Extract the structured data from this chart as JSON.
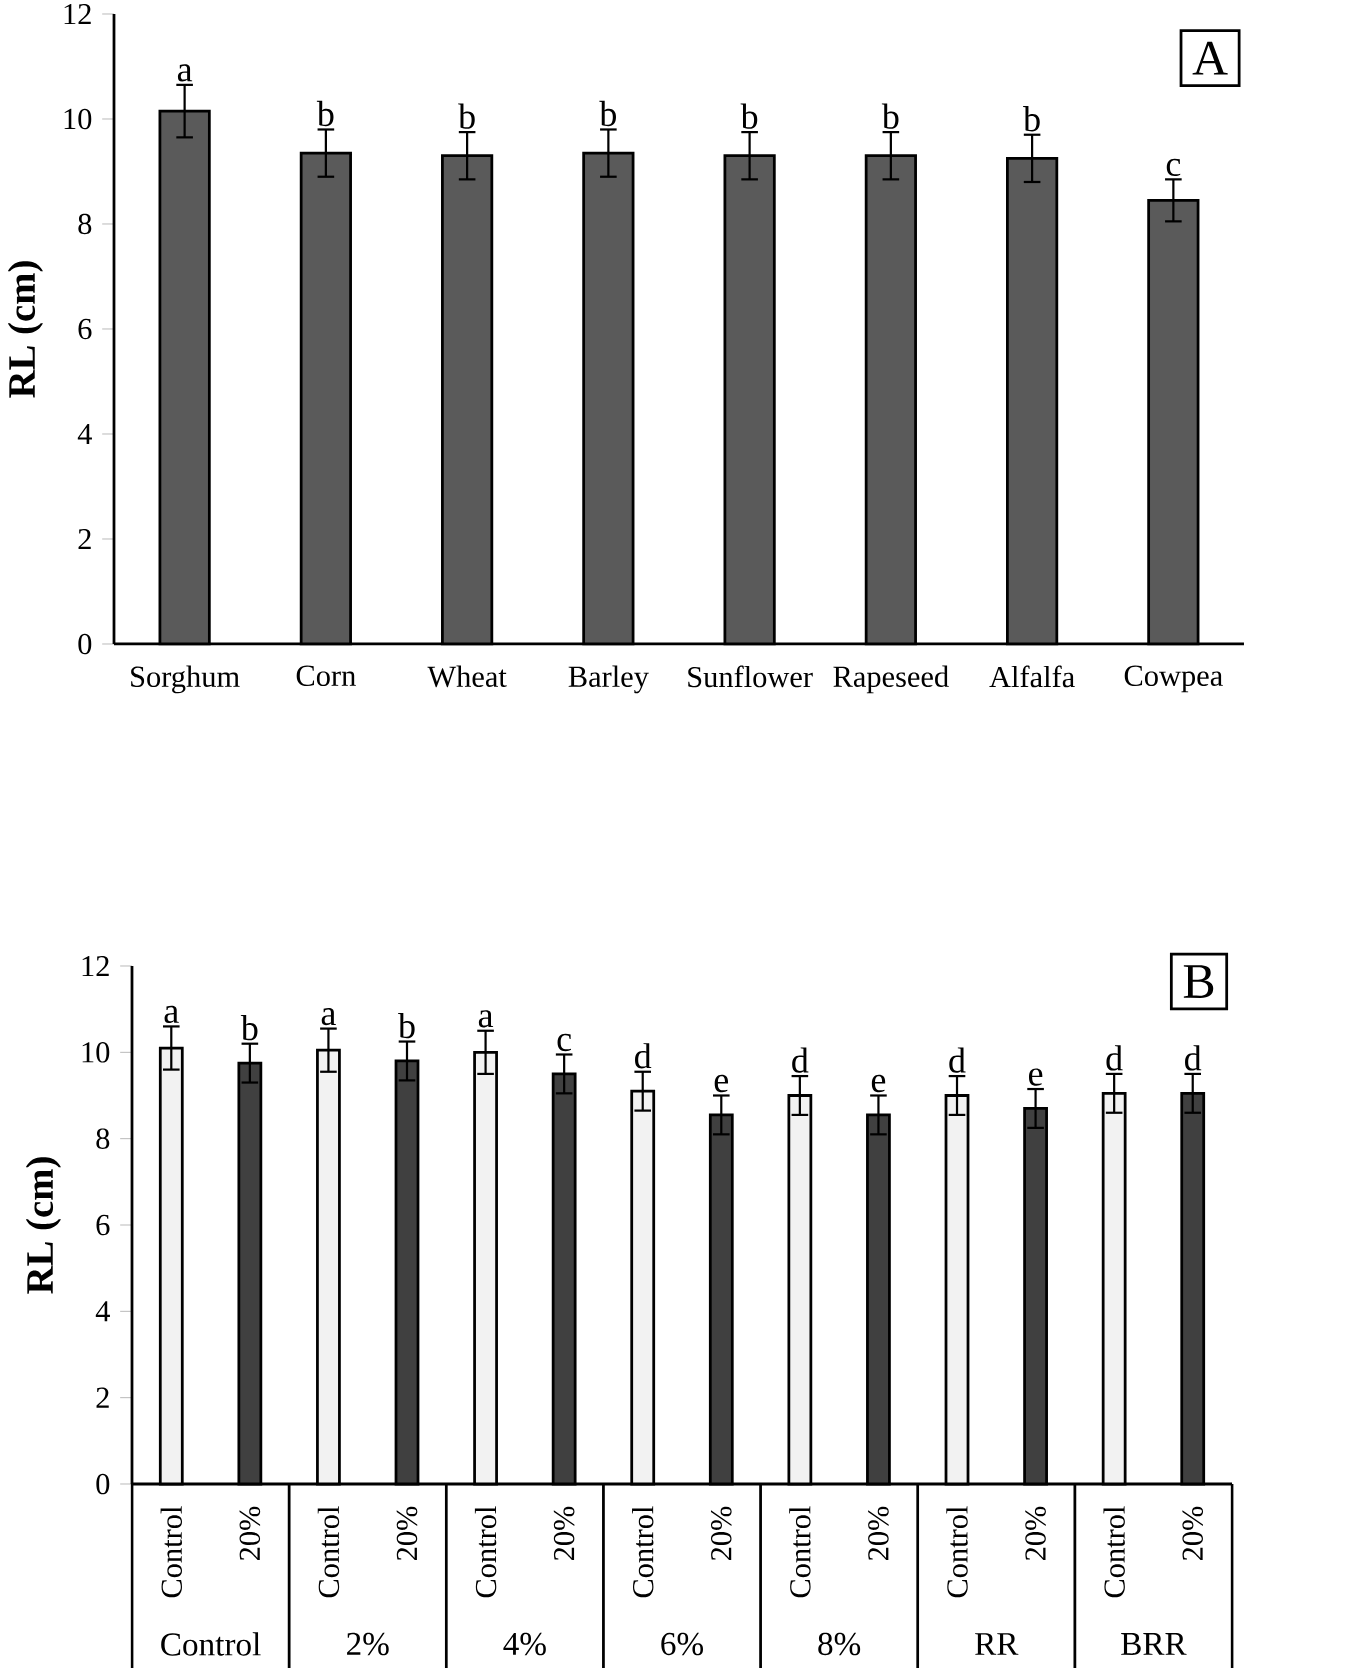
{
  "chart_data": [
    {
      "type": "bar",
      "title": "A",
      "ylabel": "RL (cm)",
      "categories": [
        "Sorghum",
        "Corn",
        "Wheat",
        "Barley",
        "Sunflower",
        "Rapeseed",
        "Alfalfa",
        "Cowpea"
      ],
      "values": [
        10.15,
        9.35,
        9.3,
        9.35,
        9.3,
        9.3,
        9.25,
        8.45
      ],
      "errors": [
        0.5,
        0.45,
        0.45,
        0.45,
        0.45,
        0.45,
        0.45,
        0.4
      ],
      "value_labels": [
        "a",
        "b",
        "b",
        "b",
        "b",
        "b",
        "b",
        "c"
      ],
      "color": "#5a5a5a",
      "ylim": [
        0,
        12
      ],
      "yticks": [
        0,
        2,
        4,
        6,
        8,
        10,
        12
      ]
    },
    {
      "type": "bar",
      "title": "B",
      "ylabel": "RL (cm)",
      "categories": [
        "Control",
        "20%",
        "Control",
        "20%",
        "Control",
        "20%",
        "Control",
        "20%",
        "Control",
        "20%",
        "Control",
        "20%",
        "Control",
        "20%"
      ],
      "values": [
        10.1,
        9.75,
        10.05,
        9.8,
        10.0,
        9.5,
        9.1,
        8.55,
        9.0,
        8.55,
        9.0,
        8.7,
        9.05,
        9.05
      ],
      "errors": [
        0.5,
        0.45,
        0.5,
        0.45,
        0.5,
        0.45,
        0.45,
        0.45,
        0.45,
        0.45,
        0.45,
        0.45,
        0.45,
        0.45
      ],
      "value_labels": [
        "a",
        "b",
        "a",
        "b",
        "a",
        "c",
        "d",
        "e",
        "d",
        "e",
        "d",
        "e",
        "d",
        "d"
      ],
      "colors": [
        "#f2f2f2",
        "#404040",
        "#f2f2f2",
        "#404040",
        "#f2f2f2",
        "#404040",
        "#f2f2f2",
        "#404040",
        "#f2f2f2",
        "#404040",
        "#f2f2f2",
        "#404040",
        "#f2f2f2",
        "#404040"
      ],
      "annotations": [
        "Control",
        "2%",
        "4%",
        "6%",
        "8%",
        "RR",
        "BRR"
      ],
      "ylim": [
        0,
        12
      ],
      "yticks": [
        0,
        2,
        4,
        6,
        8,
        10,
        12
      ]
    }
  ]
}
